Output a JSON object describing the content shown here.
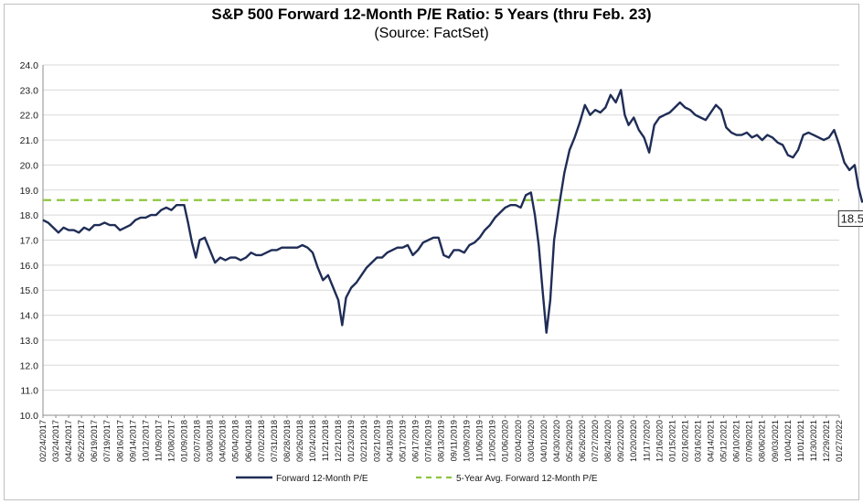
{
  "chart_data": {
    "type": "line",
    "title": "S&P 500 Forward 12-Month P/E Ratio: 5 Years (thru Feb. 23)",
    "subtitle": "(Source: FactSet)",
    "ylim": [
      10.0,
      24.0
    ],
    "yticks": [
      "10.0",
      "11.0",
      "12.0",
      "13.0",
      "14.0",
      "15.0",
      "16.0",
      "17.0",
      "18.0",
      "19.0",
      "20.0",
      "21.0",
      "22.0",
      "23.0",
      "24.0"
    ],
    "xlabels": [
      "02/24/2017",
      "03/24/2017",
      "04/24/2017",
      "05/22/2017",
      "06/19/2017",
      "07/19/2017",
      "08/16/2017",
      "09/14/2017",
      "10/12/2017",
      "11/09/2017",
      "12/08/2017",
      "01/09/2018",
      "02/07/2018",
      "03/08/2018",
      "04/05/2018",
      "05/04/2018",
      "06/04/2018",
      "07/02/2018",
      "07/31/2018",
      "08/28/2018",
      "09/26/2018",
      "10/24/2018",
      "11/21/2018",
      "12/21/2018",
      "01/23/2019",
      "02/21/2019",
      "03/21/2019",
      "04/18/2019",
      "05/17/2019",
      "06/17/2019",
      "07/16/2019",
      "08/13/2019",
      "09/11/2019",
      "10/09/2019",
      "11/06/2019",
      "12/05/2019",
      "01/06/2020",
      "02/04/2020",
      "03/04/2020",
      "04/01/2020",
      "04/30/2020",
      "05/29/2020",
      "06/26/2020",
      "07/27/2020",
      "08/24/2020",
      "09/22/2020",
      "10/20/2020",
      "11/17/2020",
      "12/16/2020",
      "01/15/2021",
      "02/16/2021",
      "03/16/2021",
      "04/14/2021",
      "05/12/2021",
      "06/10/2021",
      "07/09/2021",
      "08/06/2021",
      "09/03/2021",
      "10/04/2021",
      "11/01/2021",
      "11/30/2021",
      "12/29/2021",
      "01/27/2022"
    ],
    "series": [
      {
        "name": "Forward 12-Month P/E",
        "color": "#1f2d56",
        "points": [
          [
            0,
            17.8
          ],
          [
            0.4,
            17.7
          ],
          [
            0.8,
            17.5
          ],
          [
            1.2,
            17.3
          ],
          [
            1.6,
            17.5
          ],
          [
            2.0,
            17.4
          ],
          [
            2.4,
            17.4
          ],
          [
            2.8,
            17.3
          ],
          [
            3.2,
            17.5
          ],
          [
            3.6,
            17.4
          ],
          [
            4.0,
            17.6
          ],
          [
            4.4,
            17.6
          ],
          [
            4.8,
            17.7
          ],
          [
            5.2,
            17.6
          ],
          [
            5.6,
            17.6
          ],
          [
            6.0,
            17.4
          ],
          [
            6.4,
            17.5
          ],
          [
            6.8,
            17.6
          ],
          [
            7.2,
            17.8
          ],
          [
            7.6,
            17.9
          ],
          [
            8.0,
            17.9
          ],
          [
            8.4,
            18.0
          ],
          [
            8.8,
            18.0
          ],
          [
            9.2,
            18.2
          ],
          [
            9.6,
            18.3
          ],
          [
            10.0,
            18.2
          ],
          [
            10.4,
            18.4
          ],
          [
            10.8,
            18.4
          ],
          [
            11.0,
            18.4
          ],
          [
            11.3,
            17.7
          ],
          [
            11.6,
            16.9
          ],
          [
            11.9,
            16.3
          ],
          [
            12.2,
            17.0
          ],
          [
            12.6,
            17.1
          ],
          [
            13.0,
            16.6
          ],
          [
            13.4,
            16.1
          ],
          [
            13.8,
            16.3
          ],
          [
            14.2,
            16.2
          ],
          [
            14.6,
            16.3
          ],
          [
            15.0,
            16.3
          ],
          [
            15.4,
            16.2
          ],
          [
            15.8,
            16.3
          ],
          [
            16.2,
            16.5
          ],
          [
            16.6,
            16.4
          ],
          [
            17.0,
            16.4
          ],
          [
            17.4,
            16.5
          ],
          [
            17.8,
            16.6
          ],
          [
            18.2,
            16.6
          ],
          [
            18.6,
            16.7
          ],
          [
            19.0,
            16.7
          ],
          [
            19.4,
            16.7
          ],
          [
            19.8,
            16.7
          ],
          [
            20.2,
            16.8
          ],
          [
            20.6,
            16.7
          ],
          [
            21.0,
            16.5
          ],
          [
            21.4,
            15.9
          ],
          [
            21.8,
            15.4
          ],
          [
            22.2,
            15.6
          ],
          [
            22.6,
            15.1
          ],
          [
            23.0,
            14.6
          ],
          [
            23.3,
            13.6
          ],
          [
            23.6,
            14.7
          ],
          [
            24.0,
            15.1
          ],
          [
            24.4,
            15.3
          ],
          [
            24.8,
            15.6
          ],
          [
            25.2,
            15.9
          ],
          [
            25.6,
            16.1
          ],
          [
            26.0,
            16.3
          ],
          [
            26.4,
            16.3
          ],
          [
            26.8,
            16.5
          ],
          [
            27.2,
            16.6
          ],
          [
            27.6,
            16.7
          ],
          [
            28.0,
            16.7
          ],
          [
            28.4,
            16.8
          ],
          [
            28.8,
            16.4
          ],
          [
            29.2,
            16.6
          ],
          [
            29.6,
            16.9
          ],
          [
            30.0,
            17.0
          ],
          [
            30.4,
            17.1
          ],
          [
            30.8,
            17.1
          ],
          [
            31.2,
            16.4
          ],
          [
            31.6,
            16.3
          ],
          [
            32.0,
            16.6
          ],
          [
            32.4,
            16.6
          ],
          [
            32.8,
            16.5
          ],
          [
            33.2,
            16.8
          ],
          [
            33.6,
            16.9
          ],
          [
            34.0,
            17.1
          ],
          [
            34.4,
            17.4
          ],
          [
            34.8,
            17.6
          ],
          [
            35.2,
            17.9
          ],
          [
            35.6,
            18.1
          ],
          [
            36.0,
            18.3
          ],
          [
            36.4,
            18.4
          ],
          [
            36.8,
            18.4
          ],
          [
            37.2,
            18.3
          ],
          [
            37.6,
            18.8
          ],
          [
            38.0,
            18.9
          ],
          [
            38.3,
            18.0
          ],
          [
            38.6,
            16.8
          ],
          [
            38.9,
            15.0
          ],
          [
            39.2,
            13.3
          ],
          [
            39.5,
            14.6
          ],
          [
            39.8,
            17.0
          ],
          [
            40.2,
            18.4
          ],
          [
            40.6,
            19.7
          ],
          [
            41.0,
            20.6
          ],
          [
            41.4,
            21.1
          ],
          [
            41.8,
            21.7
          ],
          [
            42.2,
            22.4
          ],
          [
            42.6,
            22.0
          ],
          [
            43.0,
            22.2
          ],
          [
            43.4,
            22.1
          ],
          [
            43.8,
            22.3
          ],
          [
            44.2,
            22.8
          ],
          [
            44.6,
            22.5
          ],
          [
            45.0,
            23.0
          ],
          [
            45.3,
            22.0
          ],
          [
            45.6,
            21.6
          ],
          [
            46.0,
            21.9
          ],
          [
            46.4,
            21.4
          ],
          [
            46.8,
            21.1
          ],
          [
            47.2,
            20.5
          ],
          [
            47.6,
            21.6
          ],
          [
            48.0,
            21.9
          ],
          [
            48.4,
            22.0
          ],
          [
            48.8,
            22.1
          ],
          [
            49.2,
            22.3
          ],
          [
            49.6,
            22.5
          ],
          [
            50.0,
            22.3
          ],
          [
            50.4,
            22.2
          ],
          [
            50.8,
            22.0
          ],
          [
            51.2,
            21.9
          ],
          [
            51.6,
            21.8
          ],
          [
            52.0,
            22.1
          ],
          [
            52.4,
            22.4
          ],
          [
            52.8,
            22.2
          ],
          [
            53.2,
            21.5
          ],
          [
            53.6,
            21.3
          ],
          [
            54.0,
            21.2
          ],
          [
            54.4,
            21.2
          ],
          [
            54.8,
            21.3
          ],
          [
            55.2,
            21.1
          ],
          [
            55.6,
            21.2
          ],
          [
            56.0,
            21.0
          ],
          [
            56.4,
            21.2
          ],
          [
            56.8,
            21.1
          ],
          [
            57.2,
            20.9
          ],
          [
            57.6,
            20.8
          ],
          [
            58.0,
            20.4
          ],
          [
            58.4,
            20.3
          ],
          [
            58.8,
            20.6
          ],
          [
            59.2,
            21.2
          ],
          [
            59.6,
            21.3
          ],
          [
            60.0,
            21.2
          ],
          [
            60.4,
            21.1
          ],
          [
            60.8,
            21.0
          ],
          [
            61.2,
            21.1
          ],
          [
            61.6,
            21.4
          ],
          [
            62.0,
            20.8
          ],
          [
            62.4,
            20.1
          ],
          [
            62.8,
            19.8
          ],
          [
            63.2,
            20.0
          ],
          [
            63.5,
            19.1
          ],
          [
            63.8,
            18.5
          ]
        ]
      },
      {
        "name": "5-Year Avg. Forward 12-Month P/E",
        "color": "#8dc63f",
        "value": 18.6
      }
    ],
    "callout": "18.5",
    "legend_position": "bottom"
  }
}
